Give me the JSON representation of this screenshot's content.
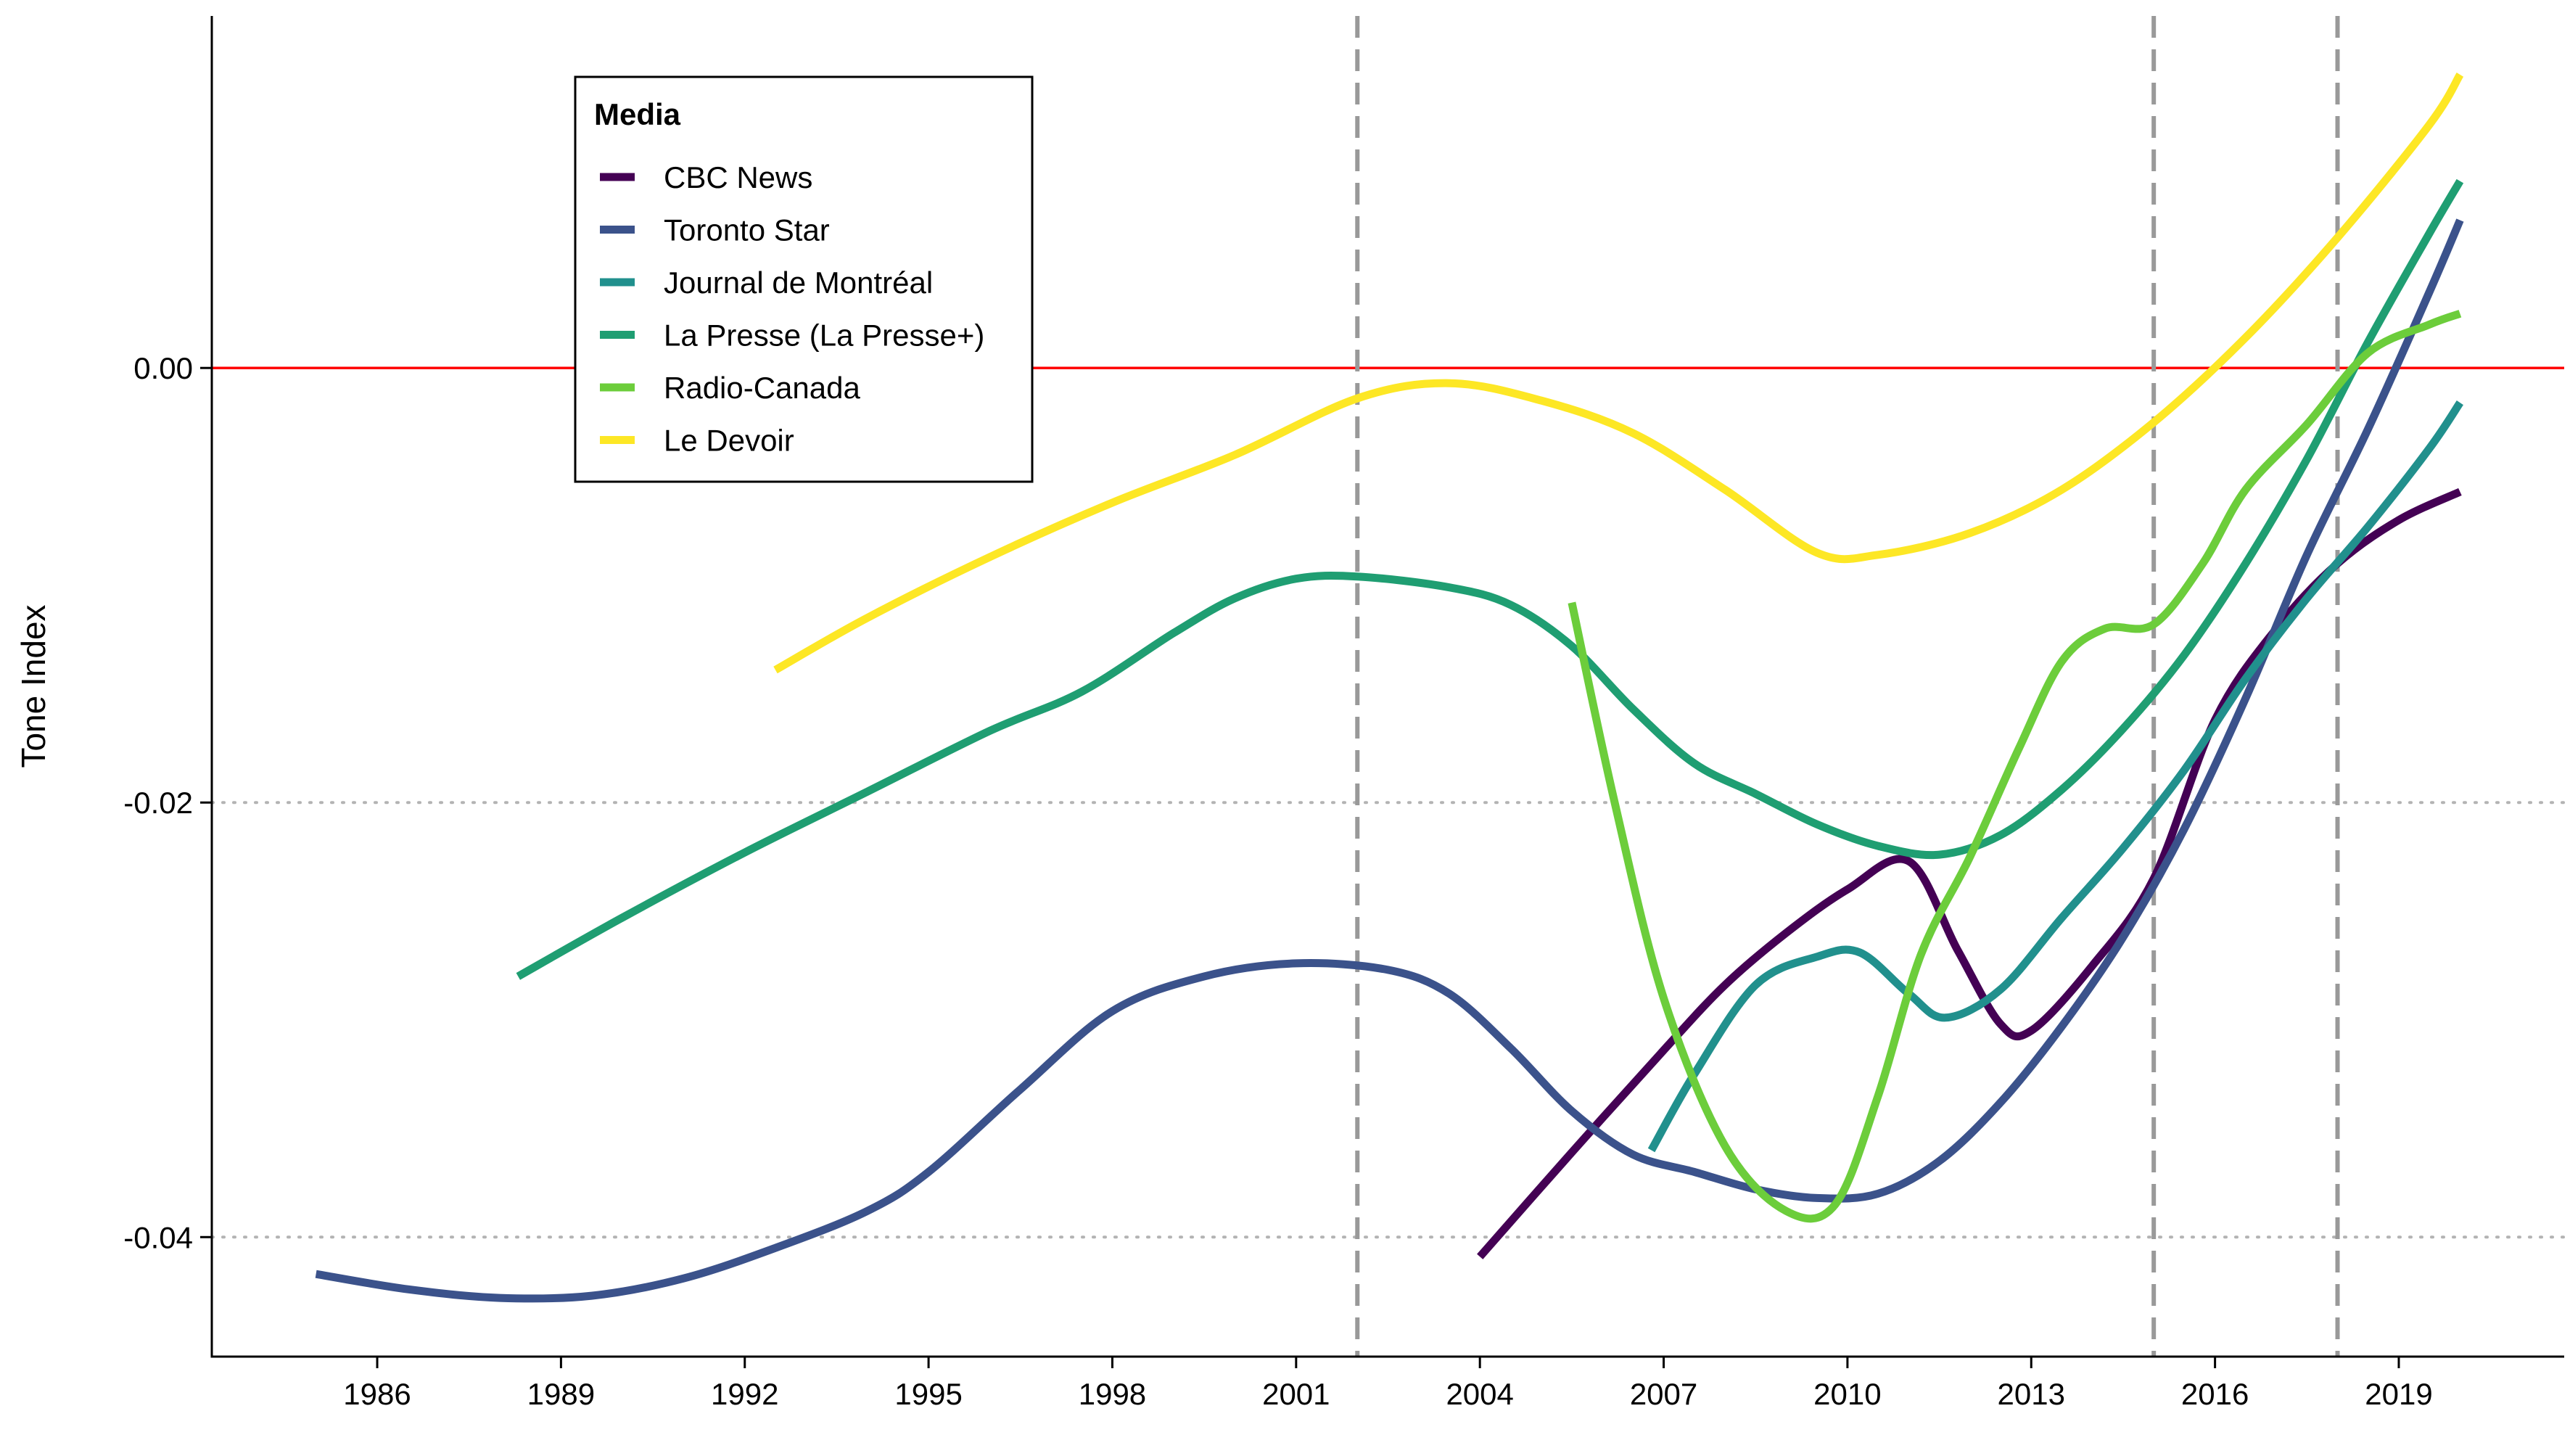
{
  "chart_data": {
    "type": "line",
    "title": "",
    "xlabel": "",
    "ylabel": "Tone Index",
    "xlim": [
      1983.3,
      2021.7
    ],
    "ylim": [
      -0.0455,
      0.0162
    ],
    "x_ticks": [
      1986,
      1989,
      1992,
      1995,
      1998,
      2001,
      2004,
      2007,
      2010,
      2013,
      2016,
      2019
    ],
    "x_tick_labels": [
      "1986",
      "1989",
      "1992",
      "1995",
      "1998",
      "2001",
      "2004",
      "2007",
      "2010",
      "2013",
      "2016",
      "2019"
    ],
    "y_ticks": [
      0.0,
      -0.02,
      -0.04
    ],
    "y_tick_labels": [
      "0.00",
      "-0.02",
      "-0.04"
    ],
    "reference_line": {
      "y": 0.0,
      "color": "#ff0000"
    },
    "dotted_gridlines_y": [
      -0.02,
      -0.04
    ],
    "vertical_dashed_lines_x": [
      2002.0,
      2015.0,
      2018.0
    ],
    "legend": {
      "title": "Media",
      "position": "top-left"
    },
    "series": [
      {
        "name": "CBC News",
        "color": "#440154",
        "points": [
          [
            2004.0,
            -0.0409
          ],
          [
            2005.5,
            -0.0361
          ],
          [
            2007.0,
            -0.0314
          ],
          [
            2008.0,
            -0.0284
          ],
          [
            2009.0,
            -0.026
          ],
          [
            2010.0,
            -0.024
          ],
          [
            2011.0,
            -0.0227
          ],
          [
            2011.8,
            -0.0268
          ],
          [
            2012.5,
            -0.0302
          ],
          [
            2013.0,
            -0.0305
          ],
          [
            2014.0,
            -0.0275
          ],
          [
            2015.0,
            -0.0235
          ],
          [
            2016.0,
            -0.0162
          ],
          [
            2017.0,
            -0.012
          ],
          [
            2018.0,
            -0.009
          ],
          [
            2019.0,
            -0.007
          ],
          [
            2020.0,
            -0.0057
          ]
        ]
      },
      {
        "name": "Toronto Star",
        "color": "#3b528b",
        "points": [
          [
            1985.0,
            -0.0417
          ],
          [
            1986.5,
            -0.0424
          ],
          [
            1988.0,
            -0.0428
          ],
          [
            1989.5,
            -0.0427
          ],
          [
            1991.0,
            -0.0419
          ],
          [
            1992.5,
            -0.0405
          ],
          [
            1994.0,
            -0.0388
          ],
          [
            1995.0,
            -0.037
          ],
          [
            1996.5,
            -0.0332
          ],
          [
            1998.0,
            -0.0296
          ],
          [
            1999.5,
            -0.028
          ],
          [
            2001.0,
            -0.0274
          ],
          [
            2002.5,
            -0.0277
          ],
          [
            2003.5,
            -0.0288
          ],
          [
            2004.5,
            -0.0313
          ],
          [
            2005.5,
            -0.0342
          ],
          [
            2006.5,
            -0.0362
          ],
          [
            2007.5,
            -0.037
          ],
          [
            2008.5,
            -0.0378
          ],
          [
            2009.5,
            -0.0382
          ],
          [
            2010.5,
            -0.038
          ],
          [
            2011.5,
            -0.0365
          ],
          [
            2012.5,
            -0.0338
          ],
          [
            2013.5,
            -0.0303
          ],
          [
            2014.5,
            -0.0262
          ],
          [
            2015.5,
            -0.0212
          ],
          [
            2016.5,
            -0.0152
          ],
          [
            2017.5,
            -0.0086
          ],
          [
            2018.5,
            -0.0028
          ],
          [
            2019.5,
            0.0035
          ],
          [
            2020.0,
            0.0068
          ]
        ]
      },
      {
        "name": "Journal de Montréal",
        "color": "#21908d",
        "points": [
          [
            2006.8,
            -0.036
          ],
          [
            2007.5,
            -0.0325
          ],
          [
            2008.5,
            -0.0284
          ],
          [
            2009.5,
            -0.0271
          ],
          [
            2010.2,
            -0.0269
          ],
          [
            2011.0,
            -0.0288
          ],
          [
            2011.6,
            -0.0299
          ],
          [
            2012.5,
            -0.0286
          ],
          [
            2013.5,
            -0.0253
          ],
          [
            2014.5,
            -0.0221
          ],
          [
            2015.5,
            -0.0185
          ],
          [
            2016.5,
            -0.0143
          ],
          [
            2017.5,
            -0.0106
          ],
          [
            2018.5,
            -0.0073
          ],
          [
            2019.5,
            -0.0037
          ],
          [
            2020.0,
            -0.0016
          ]
        ]
      },
      {
        "name": "La Presse (La Presse+)",
        "color": "#1f9e72",
        "points": [
          [
            1988.3,
            -0.028
          ],
          [
            1990.0,
            -0.0253
          ],
          [
            1992.0,
            -0.0223
          ],
          [
            1994.0,
            -0.0195
          ],
          [
            1996.0,
            -0.0167
          ],
          [
            1997.5,
            -0.0149
          ],
          [
            1999.0,
            -0.0122
          ],
          [
            2000.0,
            -0.0106
          ],
          [
            2001.0,
            -0.0097
          ],
          [
            2002.0,
            -0.0096
          ],
          [
            2003.5,
            -0.0101
          ],
          [
            2004.5,
            -0.0109
          ],
          [
            2005.5,
            -0.0128
          ],
          [
            2006.5,
            -0.0157
          ],
          [
            2007.5,
            -0.0182
          ],
          [
            2008.5,
            -0.0196
          ],
          [
            2009.5,
            -0.021
          ],
          [
            2010.5,
            -0.022
          ],
          [
            2011.5,
            -0.0224
          ],
          [
            2012.5,
            -0.0215
          ],
          [
            2013.5,
            -0.0194
          ],
          [
            2014.5,
            -0.0166
          ],
          [
            2015.5,
            -0.0132
          ],
          [
            2016.5,
            -0.009
          ],
          [
            2017.5,
            -0.0042
          ],
          [
            2018.5,
            0.0012
          ],
          [
            2019.5,
            0.0062
          ],
          [
            2020.0,
            0.0086
          ]
        ]
      },
      {
        "name": "Radio-Canada",
        "color": "#6ccd3b",
        "points": [
          [
            2005.5,
            -0.0108
          ],
          [
            2006.2,
            -0.02
          ],
          [
            2007.0,
            -0.029
          ],
          [
            2008.0,
            -0.0358
          ],
          [
            2009.0,
            -0.0388
          ],
          [
            2009.8,
            -0.0385
          ],
          [
            2010.5,
            -0.0335
          ],
          [
            2011.2,
            -0.027
          ],
          [
            2012.0,
            -0.0225
          ],
          [
            2012.8,
            -0.0175
          ],
          [
            2013.5,
            -0.0135
          ],
          [
            2014.2,
            -0.012
          ],
          [
            2015.0,
            -0.0118
          ],
          [
            2015.8,
            -0.009
          ],
          [
            2016.5,
            -0.0056
          ],
          [
            2017.5,
            -0.0026
          ],
          [
            2018.5,
            0.0007
          ],
          [
            2019.5,
            0.002
          ],
          [
            2020.0,
            0.0025
          ]
        ]
      },
      {
        "name": "Le Devoir",
        "color": "#fde725",
        "points": [
          [
            1992.5,
            -0.0139
          ],
          [
            1994.0,
            -0.0115
          ],
          [
            1996.0,
            -0.0087
          ],
          [
            1998.0,
            -0.0062
          ],
          [
            2000.0,
            -0.004
          ],
          [
            2002.0,
            -0.0014
          ],
          [
            2003.5,
            -0.0007
          ],
          [
            2005.0,
            -0.0015
          ],
          [
            2006.5,
            -0.003
          ],
          [
            2008.0,
            -0.0056
          ],
          [
            2009.5,
            -0.0085
          ],
          [
            2010.5,
            -0.0086
          ],
          [
            2012.0,
            -0.0076
          ],
          [
            2013.5,
            -0.0056
          ],
          [
            2015.0,
            -0.0025
          ],
          [
            2016.5,
            0.0014
          ],
          [
            2018.0,
            0.006
          ],
          [
            2019.5,
            0.0112
          ],
          [
            2020.0,
            0.0135
          ]
        ]
      }
    ]
  }
}
